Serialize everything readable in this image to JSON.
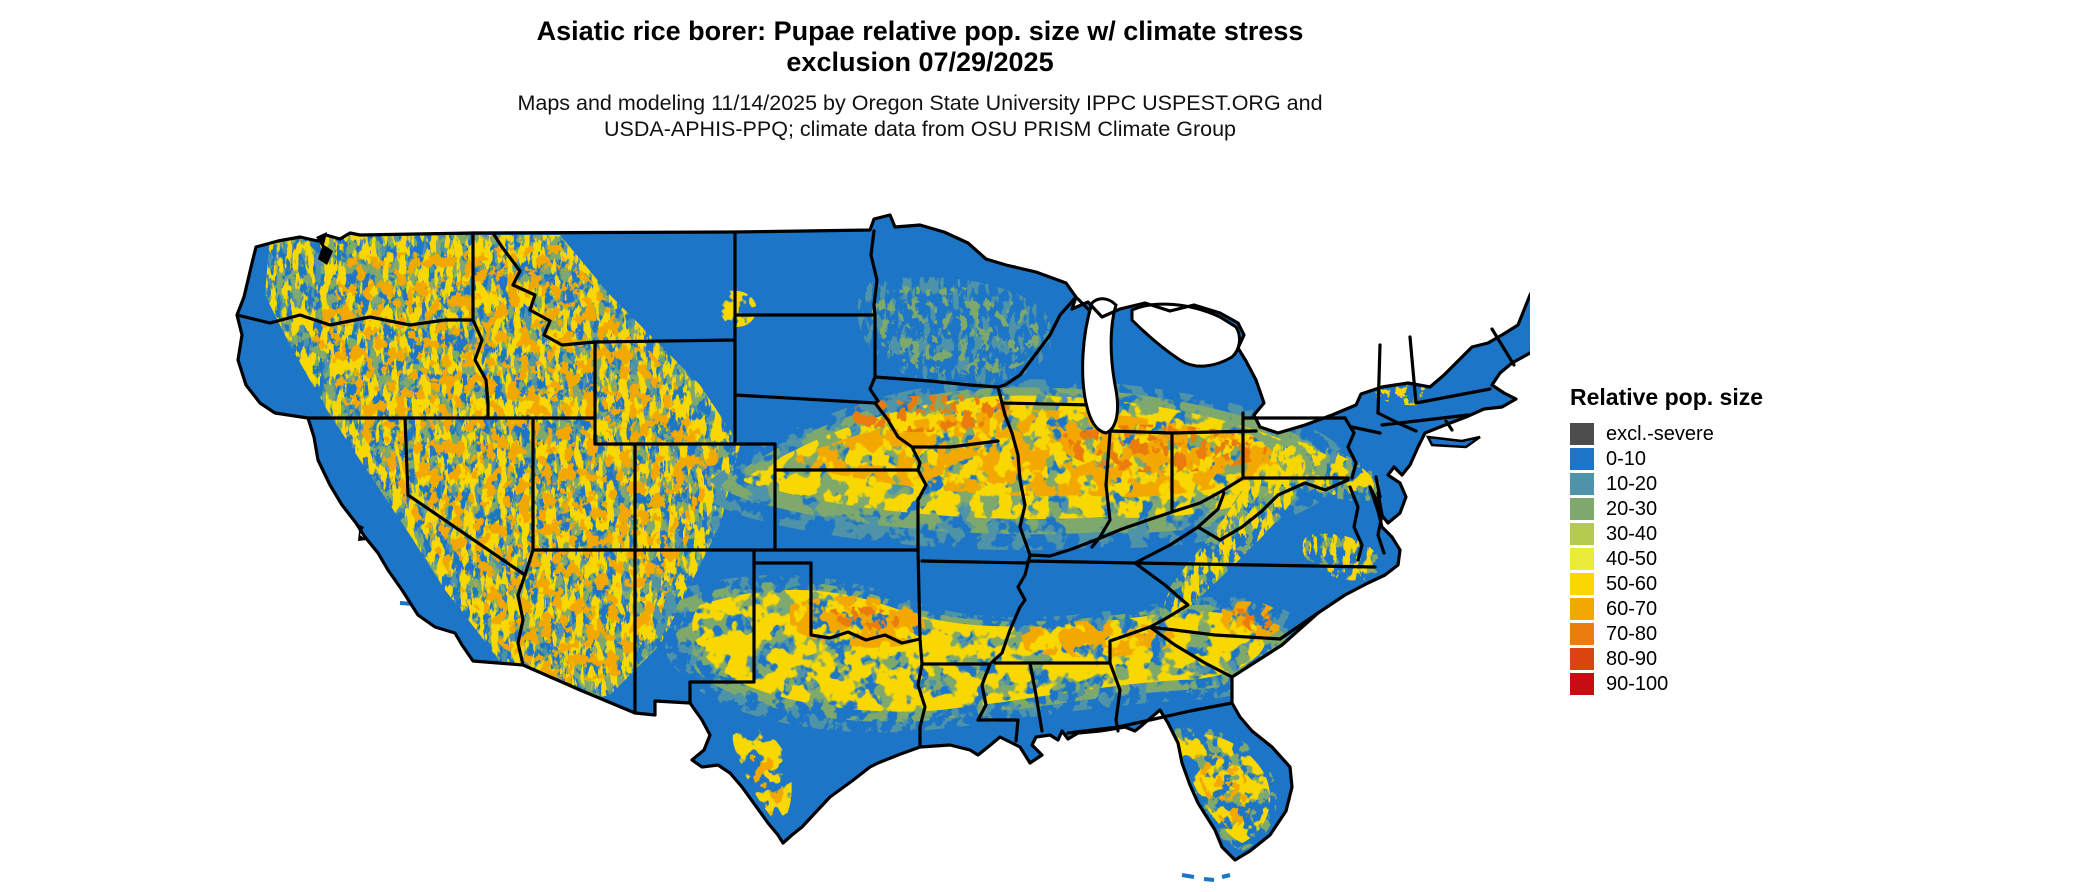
{
  "header": {
    "title_line1": "Asiatic rice borer: Pupae relative pop. size w/ climate stress",
    "title_line2": "exclusion 07/29/2025",
    "subtitle_line1": "Maps and modeling 11/14/2025 by Oregon State University IPPC USPEST.ORG and",
    "subtitle_line2": "USDA-APHIS-PPQ; climate data from OSU PRISM Climate Group"
  },
  "legend": {
    "title": "Relative pop. size",
    "entries": [
      {
        "label": "excl.-severe",
        "color": "#4d4d4d"
      },
      {
        "label": "0-10",
        "color": "#1c75c6"
      },
      {
        "label": "10-20",
        "color": "#4f93a8"
      },
      {
        "label": "20-30",
        "color": "#7fa96c"
      },
      {
        "label": "30-40",
        "color": "#b4cc4e"
      },
      {
        "label": "40-50",
        "color": "#e9ec39"
      },
      {
        "label": "50-60",
        "color": "#f8d800"
      },
      {
        "label": "60-70",
        "color": "#f2a800"
      },
      {
        "label": "70-80",
        "color": "#ea7c10"
      },
      {
        "label": "80-90",
        "color": "#da440e"
      },
      {
        "label": "90-100",
        "color": "#c50d12"
      }
    ]
  },
  "map": {
    "depicts": "Contiguous United States with state borders",
    "base_color": "#1c75c6",
    "state_border_color": "#000000",
    "lake_color": "#ffffff",
    "background_color": "#ffffff"
  }
}
